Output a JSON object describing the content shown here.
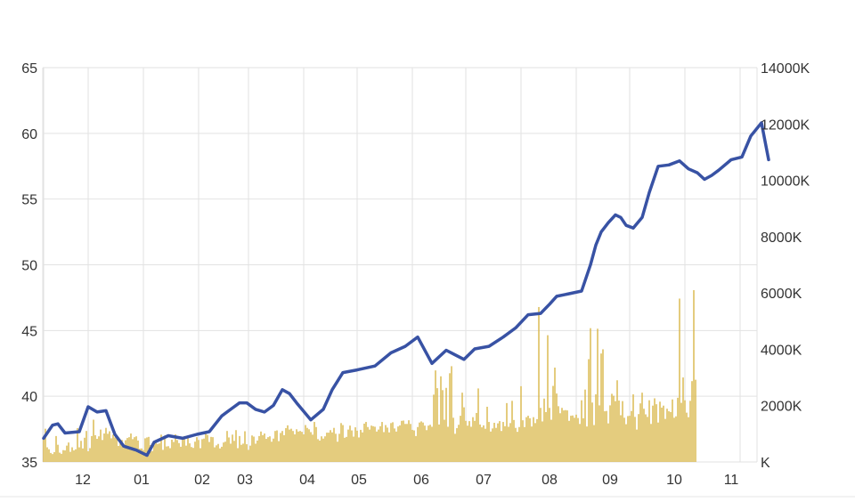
{
  "chart_data": {
    "type": "line",
    "title": "",
    "xlabel": "",
    "ylabel": "",
    "y_left_ticks": [
      "35",
      "40",
      "45",
      "50",
      "55",
      "60",
      "65"
    ],
    "y_left_range": [
      35,
      65
    ],
    "y_right_ticks": [
      "K",
      "2000K",
      "4000K",
      "6000K",
      "8000K",
      "10000K",
      "12000K",
      "14000K"
    ],
    "y_right_range": [
      0,
      14000
    ],
    "x_ticks": [
      "12",
      "01",
      "02",
      "03",
      "04",
      "05",
      "06",
      "07",
      "08",
      "09",
      "10",
      "11"
    ],
    "grid": true,
    "legend": "none",
    "colors": {
      "price": "#3852a4",
      "volume": "#d9b648"
    },
    "series": [
      {
        "type": "line",
        "x_index": [
          0,
          5,
          8,
          12,
          20,
          25,
          30,
          35,
          40,
          45,
          52,
          58,
          62,
          70,
          78,
          86,
          93,
          100,
          105,
          110,
          114,
          119,
          124,
          129,
          134,
          138,
          142,
          150,
          157,
          162,
          168,
          176,
          186,
          195,
          203,
          210,
          218,
          226,
          236,
          242,
          250,
          258,
          265,
          272,
          279,
          284,
          288,
          295,
          302,
          307,
          310,
          313,
          317,
          321,
          324,
          327,
          331,
          336,
          340,
          345,
          351,
          357,
          362,
          367,
          371,
          375,
          379,
          386,
          392,
          397,
          403,
          407
        ],
        "values": [
          36.8,
          37.8,
          37.9,
          37.2,
          37.3,
          39.2,
          38.8,
          38.9,
          37.1,
          36.2,
          35.9,
          35.5,
          36.5,
          37.0,
          36.8,
          37.1,
          37.3,
          38.5,
          39.0,
          39.5,
          39.5,
          39.0,
          38.8,
          39.3,
          40.5,
          40.2,
          39.5,
          38.2,
          39.0,
          40.5,
          41.8,
          42.0,
          42.3,
          43.3,
          43.8,
          44.5,
          42.5,
          43.5,
          42.8,
          43.6,
          43.8,
          44.5,
          45.2,
          46.2,
          46.3,
          47.0,
          47.6,
          47.8,
          48.0,
          50.0,
          51.5,
          52.5,
          53.2,
          53.8,
          53.6,
          53.0,
          52.8,
          53.6,
          55.5,
          57.5,
          57.6,
          57.9,
          57.3,
          57.0,
          56.5,
          56.8,
          57.2,
          58.0,
          58.2,
          59.8,
          60.8,
          58.0
        ]
      },
      {
        "type": "bar",
        "name": "",
        "values": [
          850,
          1180,
          520,
          450,
          320,
          280,
          350,
          920,
          610,
          330,
          290,
          420,
          410,
          580,
          690,
          360,
          520,
          410,
          450,
          1200,
          520,
          750,
          480,
          860,
          1100,
          380,
          490,
          920,
          1500,
          950,
          820,
          910,
          1150,
          780,
          1010,
          1210,
          1000,
          1090,
          840,
          970,
          870,
          960,
          570,
          750,
          780,
          500,
          770,
          850,
          880,
          1010,
          810,
          880,
          910,
          760,
          470,
          480,
          420,
          840,
          870,
          890,
          600,
          390,
          650,
          720,
          640,
          660,
          970,
          430,
          940,
          550,
          560,
          490,
          790,
          710,
          980,
          780,
          670,
          540,
          860,
          920,
          580,
          880,
          660,
          530,
          500,
          720,
          880,
          780,
          490,
          810,
          830,
          1030,
          960,
          710,
          890,
          880,
          520,
          590,
          640,
          480,
          540,
          690,
          720,
          1100,
          870,
          650,
          970,
          750,
          1130,
          490,
          920,
          610,
          650,
          1090,
          630,
          430,
          580,
          940,
          900,
          650,
          760,
          920,
          1080,
          950,
          1010,
          820,
          880,
          910,
          720,
          830,
          1100,
          1120,
          740,
          1030,
          1100,
          950,
          1200,
          1300,
          1150,
          1180,
          1100,
          980,
          1160,
          1080,
          1100,
          1070,
          980,
          1310,
          1210,
          1160,
          1060,
          970,
          1420,
          1240,
          810,
          760,
          910,
          830,
          910,
          1040,
          1040,
          1130,
          1050,
          1210,
          1000,
          720,
          1000,
          1380,
          1310,
          860,
          890,
          1150,
          1290,
          1120,
          900,
          1230,
          1110,
          870,
          1140,
          1050,
          1360,
          1420,
          1240,
          1150,
          1290,
          1270,
          1250,
          1080,
          1150,
          1270,
          1420,
          1060,
          1310,
          1220,
          1050,
          1380,
          1410,
          1190,
          1080,
          1260,
          1300,
          1460,
          1470,
          1350,
          1350,
          1480,
          1350,
          1140,
          1120,
          920,
          1240,
          1400,
          1440,
          1400,
          1290,
          1130,
          1290,
          1320,
          1250,
          2390,
          3250,
          2620,
          1330,
          3040,
          2550,
          1500,
          2630,
          1250,
          3150,
          3400,
          1570,
          1000,
          1200,
          1320,
          1640,
          2460,
          1940,
          1460,
          1290,
          1450,
          1250,
          1590,
          1460,
          1740,
          2610,
          1330,
          1230,
          1300,
          1180,
          1960,
          1420,
          1080,
          1190,
          1390,
          1210,
          1370,
          1450,
          1100,
          1420,
          1270,
          2090,
          1250,
          1380,
          2170,
          1490,
          1210,
          1070,
          1240,
          2690,
          1480,
          1240,
          1590,
          1640,
          1550,
          1260,
          1590,
          1380,
          1520,
          5500,
          1920,
          1440,
          2250,
          1770,
          4500,
          1920,
          1500,
          2700,
          3350,
          2430,
          1980,
          1730,
          1920,
          1830,
          1840,
          1830,
          1460,
          1640,
          1650,
          1570,
          1680,
          1560,
          1350,
          2190,
          1550,
          2570,
          1260,
          3650,
          4750,
          2110,
          1310,
          2400,
          4730,
          2010,
          3850,
          4000,
          1800,
          1810,
          1370,
          2010,
          2420,
          2350,
          2160,
          2900,
          2180,
          1660,
          2160,
          1570,
          1340,
          1630,
          1640,
          1810,
          2400,
          1600,
          1150,
          1700,
          2080,
          2460,
          1890,
          1690,
          1600,
          2190,
          1350,
          2000,
          2260,
          2050,
          1400,
          2140,
          1930,
          2000,
          1530,
          1890,
          1800,
          1770,
          2220,
          1570,
          1620,
          2280,
          5800,
          2100,
          3000,
          2190,
          1750,
          1590,
          2170,
          2870,
          6100,
          2920
        ]
      }
    ]
  }
}
